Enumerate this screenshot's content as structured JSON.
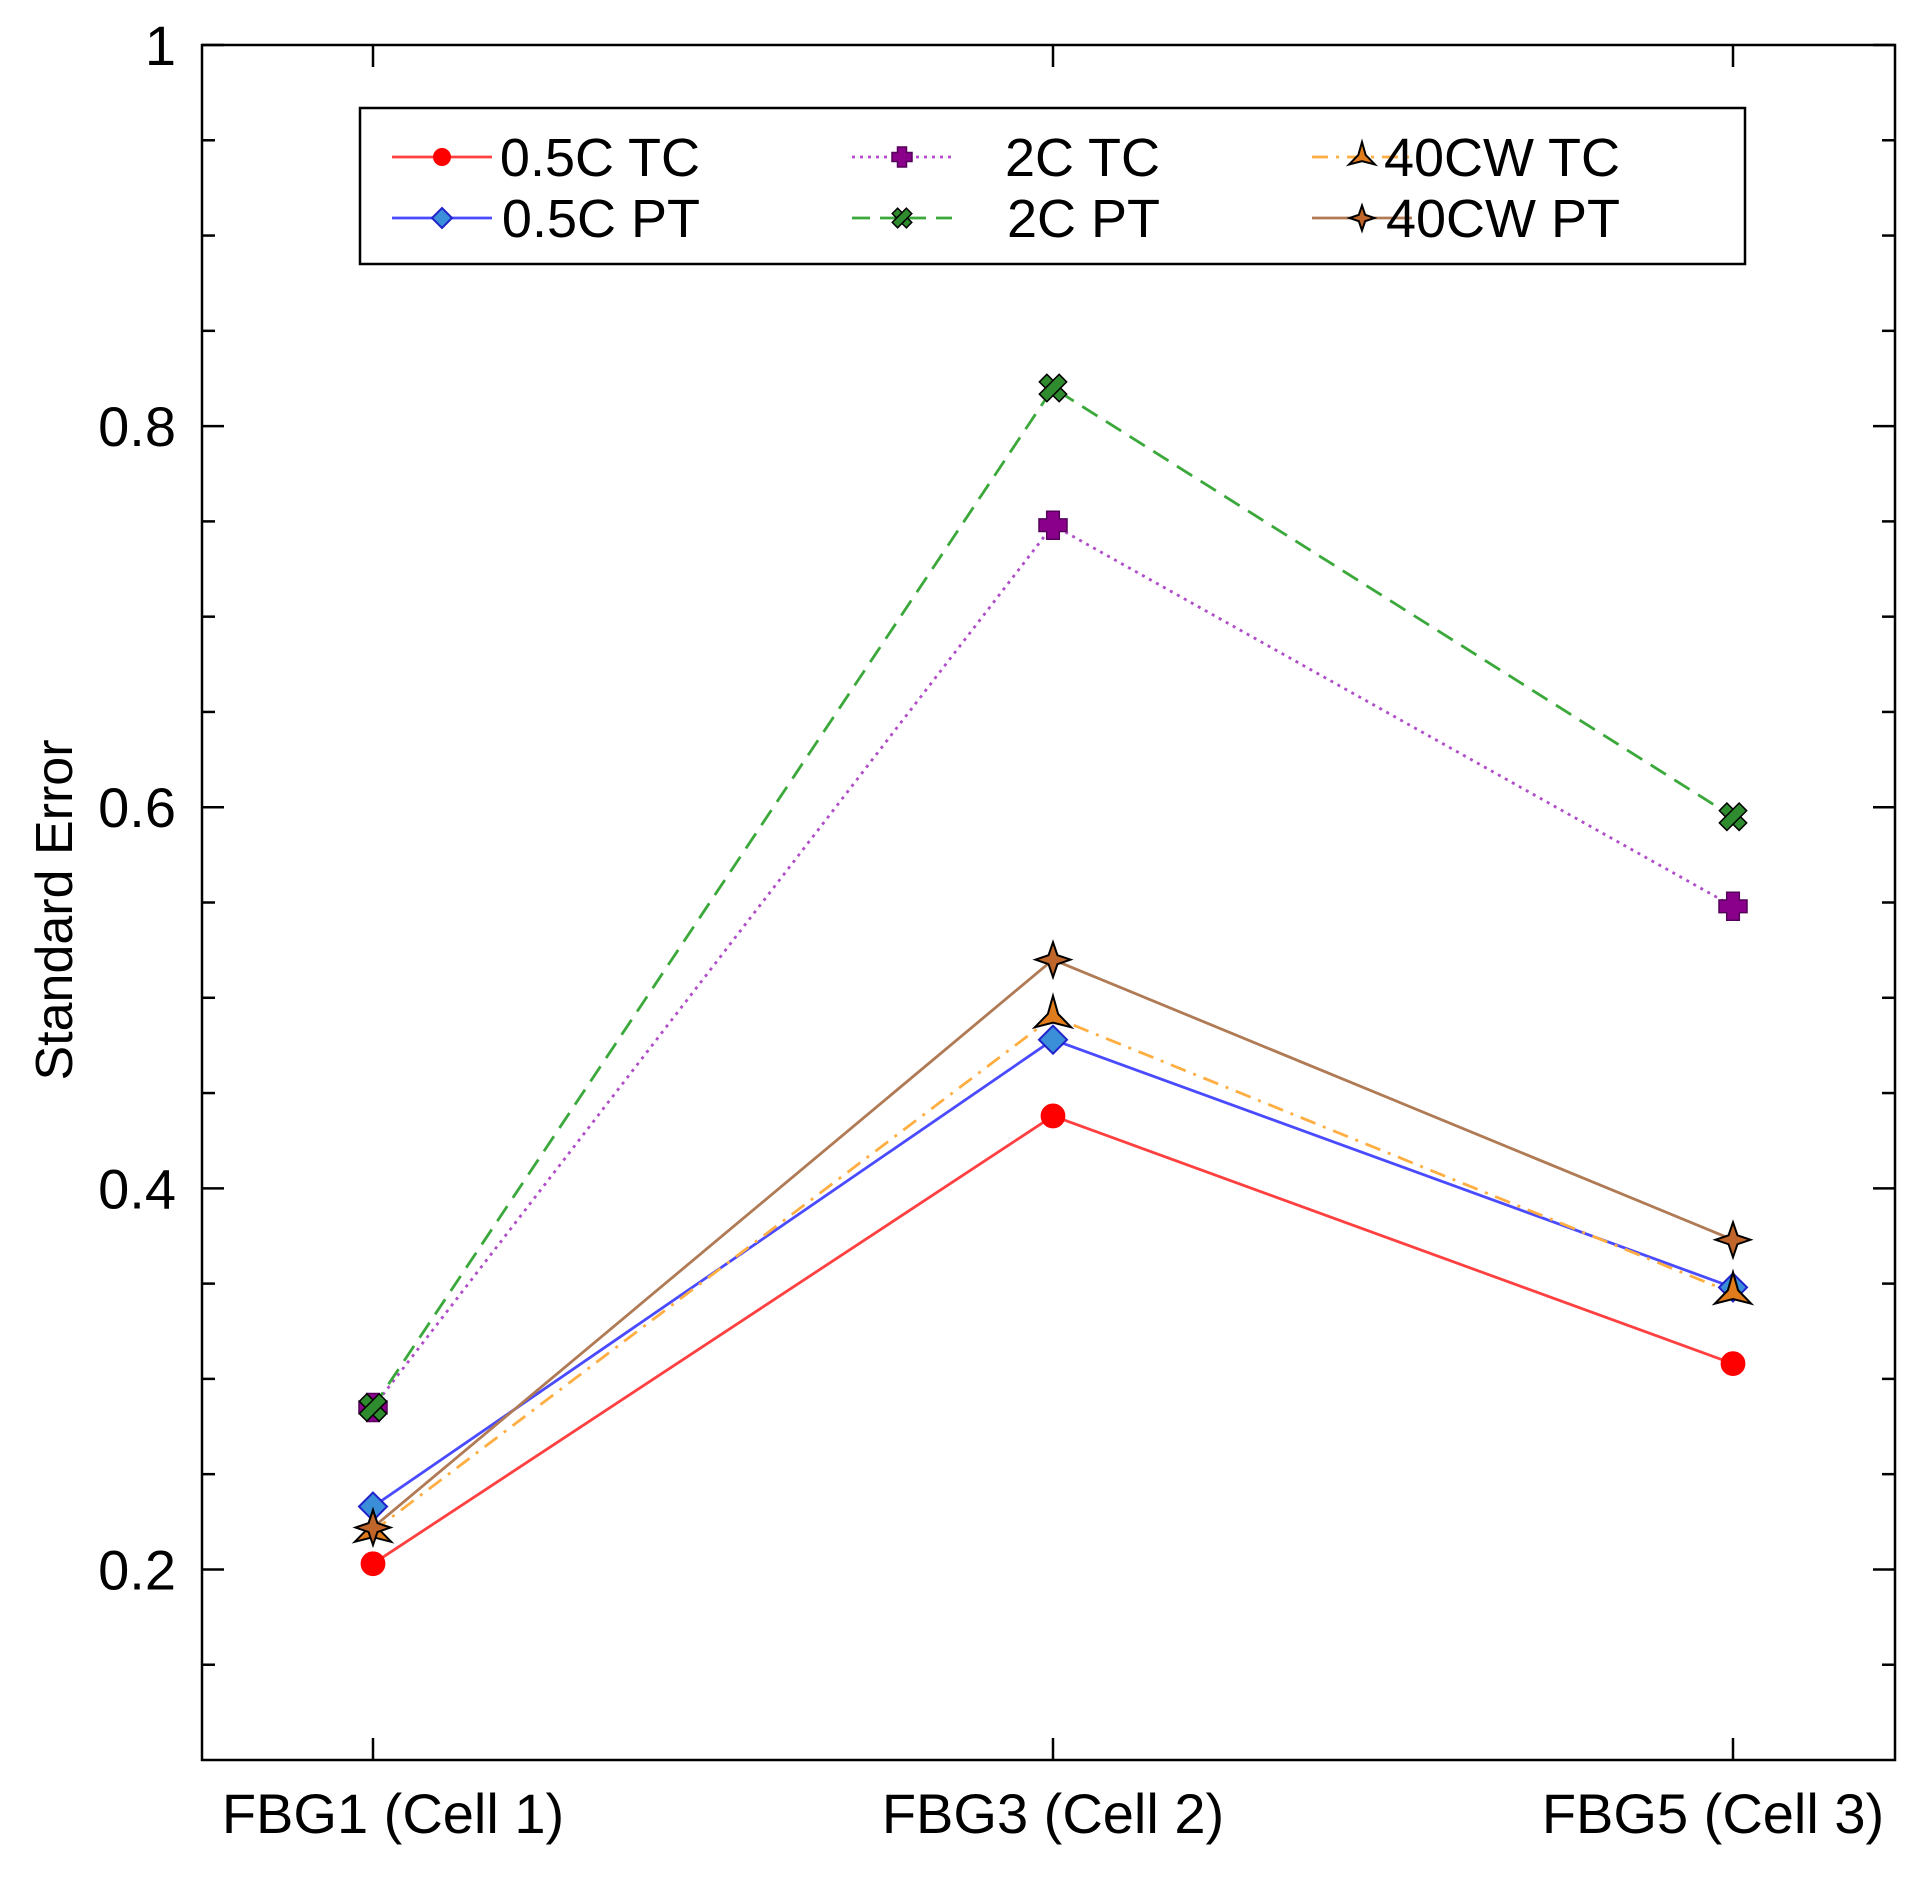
{
  "chart_data": {
    "type": "line",
    "title": "",
    "xlabel": "",
    "ylabel": "Standard Error",
    "categories": [
      "FBG1 (Cell 1)",
      "FBG3 (Cell 2)",
      "FBG5 (Cell 3)"
    ],
    "ylim": [
      0.1,
      1.0
    ],
    "yticks_labeled": [
      "0.2",
      "0.4",
      "0.6",
      "0.8",
      "1"
    ],
    "ytick_values": [
      0.2,
      0.4,
      0.6,
      0.8,
      1.0
    ],
    "yminor_step": 0.05,
    "grid": false,
    "legend_position": "top",
    "series": [
      {
        "name": "0.5C TC",
        "values": [
          0.203,
          0.438,
          0.308
        ],
        "color": "#ff4040",
        "marker": "circle",
        "marker_color": "#ff0000",
        "dash": "solid"
      },
      {
        "name": "0.5C PT",
        "values": [
          0.233,
          0.478,
          0.348
        ],
        "color": "#4a4aff",
        "marker": "diamond",
        "marker_color": "#3a8fd8",
        "dash": "solid"
      },
      {
        "name": "2C TC",
        "values": [
          0.285,
          0.748,
          0.548
        ],
        "color": "#b04dc8",
        "marker": "plus",
        "marker_color": "#8b008b",
        "dash": "dotted"
      },
      {
        "name": "2C PT",
        "values": [
          0.285,
          0.82,
          0.595
        ],
        "color": "#3aa83a",
        "marker": "x",
        "marker_color": "#2e8b2e",
        "dash": "dashed"
      },
      {
        "name": "40CW TC",
        "values": [
          0.22,
          0.49,
          0.345
        ],
        "color": "#ffae42",
        "marker": "star3",
        "marker_color": "#e07c1c",
        "dash": "dashdot"
      },
      {
        "name": "40CW PT",
        "values": [
          0.222,
          0.52,
          0.373
        ],
        "color": "#b07a55",
        "marker": "star4",
        "marker_color": "#c0662a",
        "dash": "solid"
      }
    ]
  }
}
